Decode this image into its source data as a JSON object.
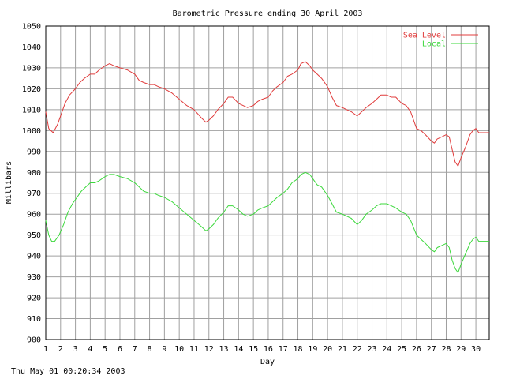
{
  "chart_data": {
    "type": "line",
    "title": "Barometric Pressure ending 30 April 2003",
    "xlabel": "Day",
    "ylabel": "Millibars",
    "xlim": [
      1,
      30.9
    ],
    "ylim": [
      900,
      1050
    ],
    "x_ticks": [
      1,
      2,
      3,
      4,
      5,
      6,
      7,
      8,
      9,
      10,
      11,
      12,
      13,
      14,
      15,
      16,
      17,
      18,
      19,
      20,
      21,
      22,
      23,
      24,
      25,
      26,
      27,
      28,
      29,
      30
    ],
    "y_ticks": [
      900,
      910,
      920,
      930,
      940,
      950,
      960,
      970,
      980,
      990,
      1000,
      1010,
      1020,
      1030,
      1040,
      1050
    ],
    "grid": true,
    "legend_position": "top-right",
    "series": [
      {
        "name": "Sea Level",
        "color": "#e03c3c",
        "points": [
          [
            1.0,
            1009
          ],
          [
            1.2,
            1001
          ],
          [
            1.5,
            999
          ],
          [
            1.8,
            1003
          ],
          [
            2.0,
            1007
          ],
          [
            2.3,
            1013
          ],
          [
            2.6,
            1017
          ],
          [
            3.0,
            1020
          ],
          [
            3.3,
            1023
          ],
          [
            3.6,
            1025
          ],
          [
            4.0,
            1027
          ],
          [
            4.3,
            1027
          ],
          [
            4.6,
            1029
          ],
          [
            5.0,
            1031
          ],
          [
            5.3,
            1032
          ],
          [
            5.6,
            1031
          ],
          [
            6.0,
            1030
          ],
          [
            6.5,
            1029
          ],
          [
            7.0,
            1027
          ],
          [
            7.3,
            1024
          ],
          [
            7.6,
            1023
          ],
          [
            8.0,
            1022
          ],
          [
            8.3,
            1022
          ],
          [
            8.6,
            1021
          ],
          [
            9.0,
            1020
          ],
          [
            9.5,
            1018
          ],
          [
            10.0,
            1015
          ],
          [
            10.5,
            1012
          ],
          [
            11.0,
            1010
          ],
          [
            11.5,
            1006
          ],
          [
            11.8,
            1004
          ],
          [
            12.0,
            1005
          ],
          [
            12.3,
            1007
          ],
          [
            12.6,
            1010
          ],
          [
            13.0,
            1013
          ],
          [
            13.3,
            1016
          ],
          [
            13.6,
            1016
          ],
          [
            14.0,
            1013
          ],
          [
            14.3,
            1012
          ],
          [
            14.6,
            1011
          ],
          [
            15.0,
            1012
          ],
          [
            15.3,
            1014
          ],
          [
            15.6,
            1015
          ],
          [
            16.0,
            1016
          ],
          [
            16.3,
            1019
          ],
          [
            16.6,
            1021
          ],
          [
            17.0,
            1023
          ],
          [
            17.3,
            1026
          ],
          [
            17.6,
            1027
          ],
          [
            18.0,
            1029
          ],
          [
            18.2,
            1032
          ],
          [
            18.5,
            1033
          ],
          [
            18.8,
            1031
          ],
          [
            19.0,
            1029
          ],
          [
            19.3,
            1027
          ],
          [
            19.6,
            1025
          ],
          [
            20.0,
            1021
          ],
          [
            20.3,
            1016
          ],
          [
            20.6,
            1012
          ],
          [
            21.0,
            1011
          ],
          [
            21.3,
            1010
          ],
          [
            21.6,
            1009
          ],
          [
            22.0,
            1007
          ],
          [
            22.3,
            1009
          ],
          [
            22.6,
            1011
          ],
          [
            23.0,
            1013
          ],
          [
            23.3,
            1015
          ],
          [
            23.6,
            1017
          ],
          [
            24.0,
            1017
          ],
          [
            24.3,
            1016
          ],
          [
            24.6,
            1016
          ],
          [
            25.0,
            1013
          ],
          [
            25.3,
            1012
          ],
          [
            25.6,
            1009
          ],
          [
            26.0,
            1001
          ],
          [
            26.3,
            1000
          ],
          [
            26.6,
            998
          ],
          [
            27.0,
            995
          ],
          [
            27.2,
            994
          ],
          [
            27.4,
            996
          ],
          [
            27.7,
            997
          ],
          [
            28.0,
            998
          ],
          [
            28.2,
            997
          ],
          [
            28.4,
            991
          ],
          [
            28.6,
            985
          ],
          [
            28.8,
            983
          ],
          [
            29.0,
            987
          ],
          [
            29.3,
            992
          ],
          [
            29.6,
            998
          ],
          [
            29.8,
            1000
          ],
          [
            30.0,
            1001
          ],
          [
            30.2,
            999
          ],
          [
            30.5,
            999
          ],
          [
            30.9,
            999
          ]
        ]
      },
      {
        "name": "Local",
        "color": "#3cd83c",
        "points": [
          [
            1.0,
            957
          ],
          [
            1.2,
            950
          ],
          [
            1.4,
            947
          ],
          [
            1.6,
            947
          ],
          [
            1.9,
            950
          ],
          [
            2.2,
            955
          ],
          [
            2.5,
            961
          ],
          [
            2.8,
            965
          ],
          [
            3.1,
            968
          ],
          [
            3.4,
            971
          ],
          [
            3.7,
            973
          ],
          [
            4.0,
            975
          ],
          [
            4.3,
            975
          ],
          [
            4.6,
            976
          ],
          [
            5.0,
            978
          ],
          [
            5.3,
            979
          ],
          [
            5.6,
            979
          ],
          [
            6.0,
            978
          ],
          [
            6.5,
            977
          ],
          [
            7.0,
            975
          ],
          [
            7.3,
            973
          ],
          [
            7.6,
            971
          ],
          [
            8.0,
            970
          ],
          [
            8.3,
            970
          ],
          [
            8.6,
            969
          ],
          [
            9.0,
            968
          ],
          [
            9.5,
            966
          ],
          [
            10.0,
            963
          ],
          [
            10.5,
            960
          ],
          [
            11.0,
            957
          ],
          [
            11.5,
            954
          ],
          [
            11.8,
            952
          ],
          [
            12.0,
            953
          ],
          [
            12.3,
            955
          ],
          [
            12.6,
            958
          ],
          [
            13.0,
            961
          ],
          [
            13.3,
            964
          ],
          [
            13.6,
            964
          ],
          [
            14.0,
            962
          ],
          [
            14.3,
            960
          ],
          [
            14.6,
            959
          ],
          [
            15.0,
            960
          ],
          [
            15.3,
            962
          ],
          [
            15.6,
            963
          ],
          [
            16.0,
            964
          ],
          [
            16.3,
            966
          ],
          [
            16.6,
            968
          ],
          [
            17.0,
            970
          ],
          [
            17.3,
            972
          ],
          [
            17.6,
            975
          ],
          [
            18.0,
            977
          ],
          [
            18.2,
            979
          ],
          [
            18.5,
            980
          ],
          [
            18.8,
            979
          ],
          [
            19.0,
            977
          ],
          [
            19.3,
            974
          ],
          [
            19.6,
            973
          ],
          [
            20.0,
            969
          ],
          [
            20.3,
            965
          ],
          [
            20.6,
            961
          ],
          [
            21.0,
            960
          ],
          [
            21.3,
            959
          ],
          [
            21.6,
            958
          ],
          [
            22.0,
            955
          ],
          [
            22.3,
            957
          ],
          [
            22.6,
            960
          ],
          [
            23.0,
            962
          ],
          [
            23.3,
            964
          ],
          [
            23.6,
            965
          ],
          [
            24.0,
            965
          ],
          [
            24.3,
            964
          ],
          [
            24.6,
            963
          ],
          [
            25.0,
            961
          ],
          [
            25.3,
            960
          ],
          [
            25.6,
            957
          ],
          [
            26.0,
            950
          ],
          [
            26.3,
            948
          ],
          [
            26.6,
            946
          ],
          [
            27.0,
            943
          ],
          [
            27.2,
            942
          ],
          [
            27.4,
            944
          ],
          [
            27.7,
            945
          ],
          [
            28.0,
            946
          ],
          [
            28.2,
            944
          ],
          [
            28.4,
            938
          ],
          [
            28.6,
            934
          ],
          [
            28.8,
            932
          ],
          [
            29.0,
            936
          ],
          [
            29.3,
            941
          ],
          [
            29.6,
            946
          ],
          [
            29.8,
            948
          ],
          [
            30.0,
            949
          ],
          [
            30.2,
            947
          ],
          [
            30.5,
            947
          ],
          [
            30.9,
            947
          ]
        ]
      }
    ]
  },
  "footer": {
    "timestamp": "Thu May 01 00:20:34 2003"
  }
}
